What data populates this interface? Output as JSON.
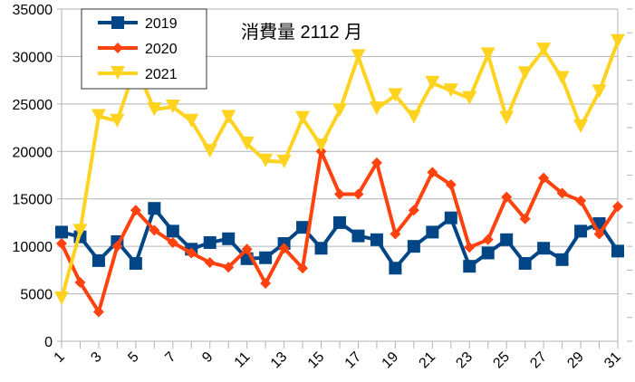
{
  "chart_data": {
    "type": "line",
    "title": "消費量 2112 月",
    "xlabel": "",
    "ylabel": "",
    "x": [
      1,
      2,
      3,
      4,
      5,
      6,
      7,
      8,
      9,
      10,
      11,
      12,
      13,
      14,
      15,
      16,
      17,
      18,
      19,
      20,
      21,
      22,
      23,
      24,
      25,
      26,
      27,
      28,
      29,
      30,
      31
    ],
    "x_tick_labels": [
      "1",
      "3",
      "5",
      "7",
      "9",
      "11",
      "13",
      "15",
      "17",
      "19",
      "21",
      "23",
      "25",
      "27",
      "29",
      "31"
    ],
    "y_tick_labels": [
      "0",
      "5000",
      "10000",
      "15000",
      "20000",
      "25000",
      "30000",
      "35000"
    ],
    "ylim": [
      0,
      35000
    ],
    "grid": "horizontal",
    "legend_placement": "top-left",
    "series": [
      {
        "name": "2019",
        "color": "#004586",
        "marker": "square",
        "values": [
          11500,
          11000,
          8500,
          10500,
          8200,
          14000,
          11600,
          9700,
          10400,
          10800,
          8700,
          8800,
          10300,
          12000,
          9800,
          12500,
          11100,
          10700,
          7700,
          10000,
          11500,
          13000,
          7900,
          9300,
          10700,
          8200,
          9800,
          8600,
          11600,
          12400,
          9500
        ]
      },
      {
        "name": "2020",
        "color": "#ff420e",
        "marker": "diamond",
        "values": [
          10300,
          6200,
          3100,
          10000,
          13800,
          11700,
          10400,
          9300,
          8300,
          7800,
          9700,
          6100,
          9800,
          7700,
          20000,
          15500,
          15500,
          18800,
          11300,
          13800,
          17800,
          16500,
          9900,
          10700,
          15200,
          12900,
          17200,
          15600,
          14800,
          11300,
          14200
        ]
      },
      {
        "name": "2021",
        "color": "#ffd320",
        "marker": "triangle-down",
        "values": [
          4500,
          11600,
          23700,
          23200,
          29000,
          24400,
          24700,
          23200,
          20000,
          23600,
          20800,
          19000,
          18900,
          23500,
          20600,
          24300,
          30000,
          24500,
          25900,
          23600,
          27200,
          26400,
          25600,
          30200,
          23500,
          28200,
          30700,
          27700,
          22600,
          26300,
          31600
        ]
      }
    ]
  }
}
